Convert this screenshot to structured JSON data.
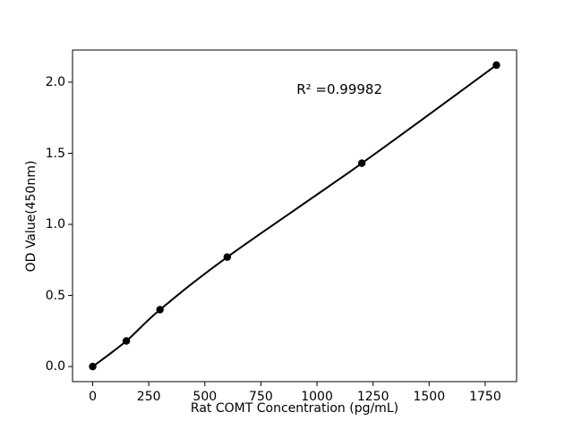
{
  "figure": {
    "background": "#ffffff"
  },
  "chart_data": {
    "type": "scatter",
    "title": "",
    "xlabel": "Rat COMT Concentration (pg/mL)",
    "ylabel": "OD Value(450nm)",
    "x": [
      0,
      150,
      300,
      600,
      1200,
      1800
    ],
    "y": [
      0.0,
      0.18,
      0.4,
      0.77,
      1.43,
      2.12
    ],
    "fit_line": "smooth curve through all points",
    "xlim": [
      -90,
      1890
    ],
    "ylim": [
      -0.106,
      2.226
    ],
    "xticks": [
      0,
      250,
      500,
      750,
      1000,
      1250,
      1500,
      1750
    ],
    "yticks": [
      0.0,
      0.5,
      1.0,
      1.5,
      2.0
    ],
    "ytick_decimals": 1,
    "grid": false,
    "legend": false,
    "annotation": {
      "text": "R² =0.99982",
      "x": 1100,
      "y": 1.95
    },
    "colors": {
      "line": "#000000",
      "marker": "#000000",
      "axis": "#000000",
      "text": "#000000",
      "background": "#ffffff"
    }
  }
}
